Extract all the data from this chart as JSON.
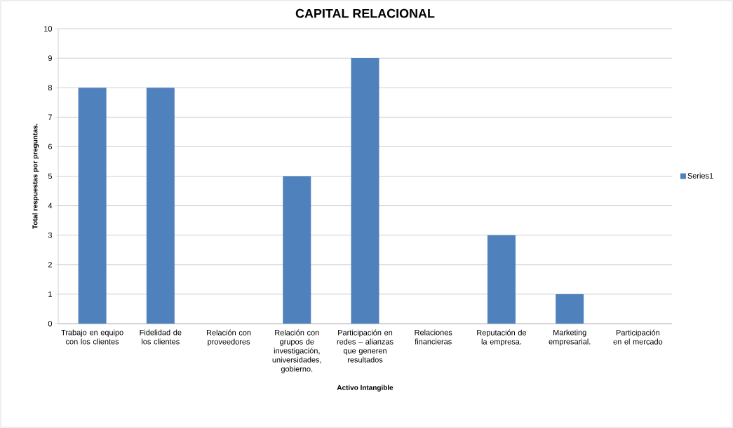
{
  "chart_data": {
    "type": "bar",
    "title": "CAPITAL RELACIONAL",
    "xlabel": "Activo Intangible",
    "ylabel": "Total respuestas por preguntas.",
    "categories": [
      "Trabajo en equipo con los clientes",
      "Fidelidad de los clientes",
      "Relación con proveedores",
      "Relación con grupos de investigación, universidades, gobierno.",
      "Participación en redes – alianzas que generen resultados",
      "Relaciones financieras",
      "Reputación de la empresa.",
      "Marketing empresarial.",
      "Participación en el mercado"
    ],
    "series": [
      {
        "name": "Series1",
        "color": "#4f81bd",
        "values": [
          8,
          8,
          0,
          5,
          9,
          0,
          3,
          1,
          0
        ]
      }
    ],
    "ylim": [
      0,
      10
    ],
    "yticks": [
      0,
      1,
      2,
      3,
      4,
      5,
      6,
      7,
      8,
      9,
      10
    ],
    "grid": "y",
    "legend": "right"
  }
}
